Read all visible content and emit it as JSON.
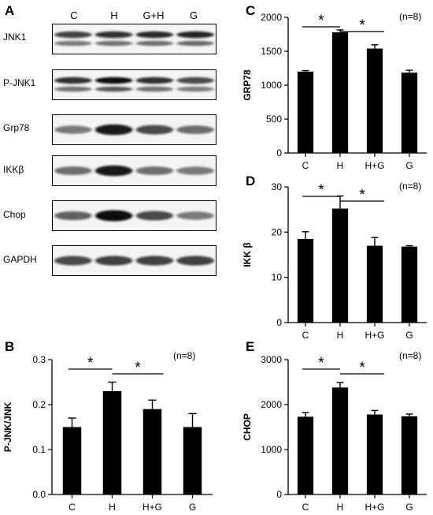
{
  "panels": {
    "A": "A",
    "B": "B",
    "C": "C",
    "D": "D",
    "E": "E"
  },
  "blot": {
    "lanes": [
      "C",
      "H",
      "G+H",
      "G"
    ],
    "rows": [
      {
        "label": "JNK1",
        "bands": [
          0.78,
          0.85,
          0.88,
          0.9
        ],
        "double": true
      },
      {
        "label": "P-JNK1",
        "bands": [
          0.85,
          1.0,
          0.85,
          0.75
        ],
        "double": true
      },
      {
        "label": "Grp78",
        "bands": [
          0.55,
          0.95,
          0.75,
          0.6
        ],
        "double": false
      },
      {
        "label": "IKKβ",
        "bands": [
          0.6,
          0.95,
          0.6,
          0.55
        ],
        "double": false
      },
      {
        "label": "Chop",
        "bands": [
          0.65,
          1.0,
          0.75,
          0.55
        ],
        "double": false
      },
      {
        "label": "GAPDH",
        "bands": [
          0.75,
          0.78,
          0.78,
          0.78
        ],
        "double": false
      }
    ]
  },
  "chart_data": [
    {
      "id": "B",
      "type": "bar",
      "categories": [
        "C",
        "H",
        "H+G",
        "G"
      ],
      "values": [
        0.15,
        0.23,
        0.19,
        0.15
      ],
      "errors": [
        0.02,
        0.02,
        0.02,
        0.03
      ],
      "ylabel": "P-JNK/JNK",
      "ylim": [
        0.0,
        0.3
      ],
      "yticks": [
        0.0,
        0.1,
        0.2,
        0.3
      ],
      "ytick_labels": [
        "0.0",
        "0.1",
        "0.2",
        "0.3"
      ],
      "n_label": "(n=8)",
      "significance": [
        {
          "from": 0,
          "to": 1,
          "label": "*"
        },
        {
          "from": 1,
          "to": 2,
          "label": "*"
        }
      ]
    },
    {
      "id": "C",
      "type": "bar",
      "categories": [
        "C",
        "H",
        "H+G",
        "G"
      ],
      "values": [
        1200,
        1780,
        1540,
        1185
      ],
      "errors": [
        15,
        35,
        55,
        35
      ],
      "ylabel": "GRP78",
      "ylim": [
        0,
        2000
      ],
      "yticks": [
        0,
        500,
        1000,
        1500,
        2000
      ],
      "ytick_labels": [
        "0",
        "500",
        "1000",
        "1500",
        "2000"
      ],
      "n_label": "(n=8)",
      "significance": [
        {
          "from": 0,
          "to": 1,
          "label": "*"
        },
        {
          "from": 1,
          "to": 2,
          "label": "*"
        }
      ]
    },
    {
      "id": "D",
      "type": "bar",
      "categories": [
        "C",
        "H",
        "H+G",
        "G"
      ],
      "values": [
        18.5,
        25.2,
        17.0,
        16.8
      ],
      "errors": [
        1.6,
        2.8,
        1.8,
        0.2
      ],
      "ylabel": "IKK β",
      "ylim": [
        0,
        30
      ],
      "yticks": [
        0,
        10,
        20,
        30
      ],
      "ytick_labels": [
        "0",
        "10",
        "20",
        "30"
      ],
      "n_label": "(n=8)",
      "significance": [
        {
          "from": 0,
          "to": 1,
          "label": "*"
        },
        {
          "from": 1,
          "to": 2,
          "label": "*"
        }
      ]
    },
    {
      "id": "E",
      "type": "bar",
      "categories": [
        "C",
        "H",
        "H+G",
        "G"
      ],
      "values": [
        1730,
        2380,
        1780,
        1740
      ],
      "errors": [
        90,
        110,
        90,
        50
      ],
      "ylabel": "CHOP",
      "ylim": [
        0,
        3000
      ],
      "yticks": [
        0,
        1000,
        2000,
        3000
      ],
      "ytick_labels": [
        "0",
        "1000",
        "2000",
        "3000"
      ],
      "n_label": "(n=8)",
      "significance": [
        {
          "from": 0,
          "to": 1,
          "label": "*"
        },
        {
          "from": 1,
          "to": 2,
          "label": "*"
        }
      ]
    }
  ]
}
